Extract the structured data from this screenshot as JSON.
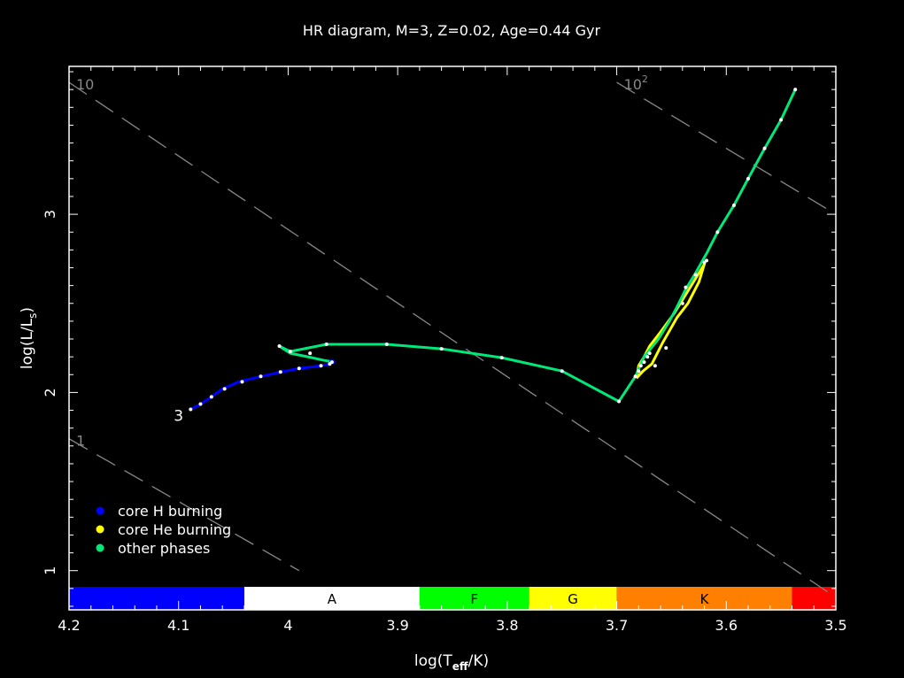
{
  "chart_data": {
    "type": "line",
    "title": "HR diagram, M=3, Z=0.02, Age=0.44 Gyr",
    "xlabel": {
      "main": "log(T",
      "sub": "eff",
      "tail": "/K)"
    },
    "ylabel": {
      "main": "log(L/L",
      "sub": "s",
      "tail": ")"
    },
    "xlim": [
      4.2,
      3.5
    ],
    "ylim": [
      0.78,
      3.83
    ],
    "xticks": [
      {
        "v": 4.2,
        "label": "4.2"
      },
      {
        "v": 4.1,
        "label": "4.1"
      },
      {
        "v": 4.0,
        "label": "4"
      },
      {
        "v": 3.9,
        "label": "3.9"
      },
      {
        "v": 3.8,
        "label": "3.8"
      },
      {
        "v": 3.7,
        "label": "3.7"
      },
      {
        "v": 3.6,
        "label": "3.6"
      },
      {
        "v": 3.5,
        "label": "3.5"
      }
    ],
    "yticks": [
      {
        "v": 1,
        "label": "1"
      },
      {
        "v": 2,
        "label": "2"
      },
      {
        "v": 3,
        "label": "3"
      }
    ],
    "spectral_bar": [
      {
        "from": 4.2,
        "to": 4.04,
        "label": "",
        "color": "#0000ff"
      },
      {
        "from": 4.04,
        "to": 3.88,
        "label": "A",
        "color": "#ffffff"
      },
      {
        "from": 3.88,
        "to": 3.78,
        "label": "F",
        "color": "#00ff00"
      },
      {
        "from": 3.78,
        "to": 3.7,
        "label": "G",
        "color": "#ffff00"
      },
      {
        "from": 3.7,
        "to": 3.54,
        "label": "K",
        "color": "#ff8000"
      },
      {
        "from": 3.54,
        "to": 3.5,
        "label": "",
        "color": "#ff0000"
      }
    ],
    "radius_lines": [
      {
        "name": "1",
        "label_main": "1",
        "label_sup": "",
        "x": [
          4.2,
          3.99
        ],
        "y": [
          1.74,
          1.0
        ]
      },
      {
        "name": "10",
        "label_main": "10",
        "label_sup": "",
        "x": [
          4.2,
          3.5
        ],
        "y": [
          3.74,
          0.85
        ]
      },
      {
        "name": "100",
        "label_main": "10",
        "label_sup": "2",
        "x": [
          3.7,
          3.5
        ],
        "y": [
          3.74,
          3.0
        ]
      }
    ],
    "series": [
      {
        "name": "core H burning",
        "color": "#0000ff",
        "x": [
          4.089,
          4.08,
          4.07,
          4.06,
          4.045,
          4.025,
          4.006,
          3.99,
          3.97,
          3.962,
          3.958,
          3.96,
          3.962
        ],
        "y": [
          1.905,
          1.935,
          1.975,
          2.02,
          2.06,
          2.09,
          2.115,
          2.135,
          2.15,
          2.16,
          2.17,
          2.18,
          2.175
        ]
      },
      {
        "name": "core He burning",
        "color": "#ffff00",
        "x": [
          3.682,
          3.676,
          3.668,
          3.658,
          3.645,
          3.635,
          3.625,
          3.62,
          3.635,
          3.648,
          3.66,
          3.67,
          3.675,
          3.68,
          3.682
        ],
        "y": [
          2.08,
          2.12,
          2.16,
          2.28,
          2.42,
          2.5,
          2.62,
          2.72,
          2.57,
          2.44,
          2.34,
          2.26,
          2.2,
          2.15,
          2.08
        ]
      },
      {
        "name": "other phases",
        "color": "#00e87a",
        "x": [
          3.962,
          3.967,
          3.982,
          3.998,
          4.008,
          3.998,
          3.965,
          3.91,
          3.86,
          3.805,
          3.75,
          3.698,
          3.683,
          3.675,
          3.662,
          3.652,
          3.645,
          3.637,
          3.628,
          3.618,
          3.608,
          3.593,
          3.58,
          3.565,
          3.55,
          3.537
        ],
        "y": [
          2.175,
          2.18,
          2.2,
          2.22,
          2.26,
          2.23,
          2.27,
          2.27,
          2.245,
          2.195,
          2.12,
          1.95,
          2.09,
          2.2,
          2.3,
          2.4,
          2.48,
          2.58,
          2.67,
          2.78,
          2.9,
          3.05,
          3.2,
          3.37,
          3.53,
          3.7
        ]
      }
    ],
    "markers": {
      "x": [
        4.089,
        4.08,
        4.07,
        4.058,
        4.042,
        4.025,
        4.007,
        3.99,
        3.98,
        3.97,
        3.962,
        3.96,
        4.008,
        3.998,
        3.965,
        3.91,
        3.86,
        3.805,
        3.75,
        3.698,
        3.683,
        3.68,
        3.678,
        3.675,
        3.672,
        3.67,
        3.665,
        3.655,
        3.64,
        3.637,
        3.628,
        3.62,
        3.618,
        3.608,
        3.593,
        3.58,
        3.565,
        3.55,
        3.537
      ],
      "y": [
        1.905,
        1.935,
        1.975,
        2.02,
        2.06,
        2.09,
        2.115,
        2.135,
        2.22,
        2.15,
        2.16,
        2.17,
        2.26,
        2.23,
        2.27,
        2.27,
        2.245,
        2.195,
        2.12,
        1.95,
        2.09,
        2.12,
        2.15,
        2.17,
        2.2,
        2.22,
        2.15,
        2.25,
        2.5,
        2.59,
        2.66,
        2.73,
        2.74,
        2.9,
        3.05,
        3.2,
        3.37,
        3.53,
        3.7
      ]
    },
    "track_label": {
      "text": "3",
      "x": 4.1,
      "y": 1.84
    },
    "legend": {
      "placement": "bottom-left",
      "items": [
        {
          "label": "core H burning",
          "color": "#0000ff"
        },
        {
          "label": "core He burning",
          "color": "#ffff00"
        },
        {
          "label": "other phases",
          "color": "#00e87a"
        }
      ]
    }
  }
}
